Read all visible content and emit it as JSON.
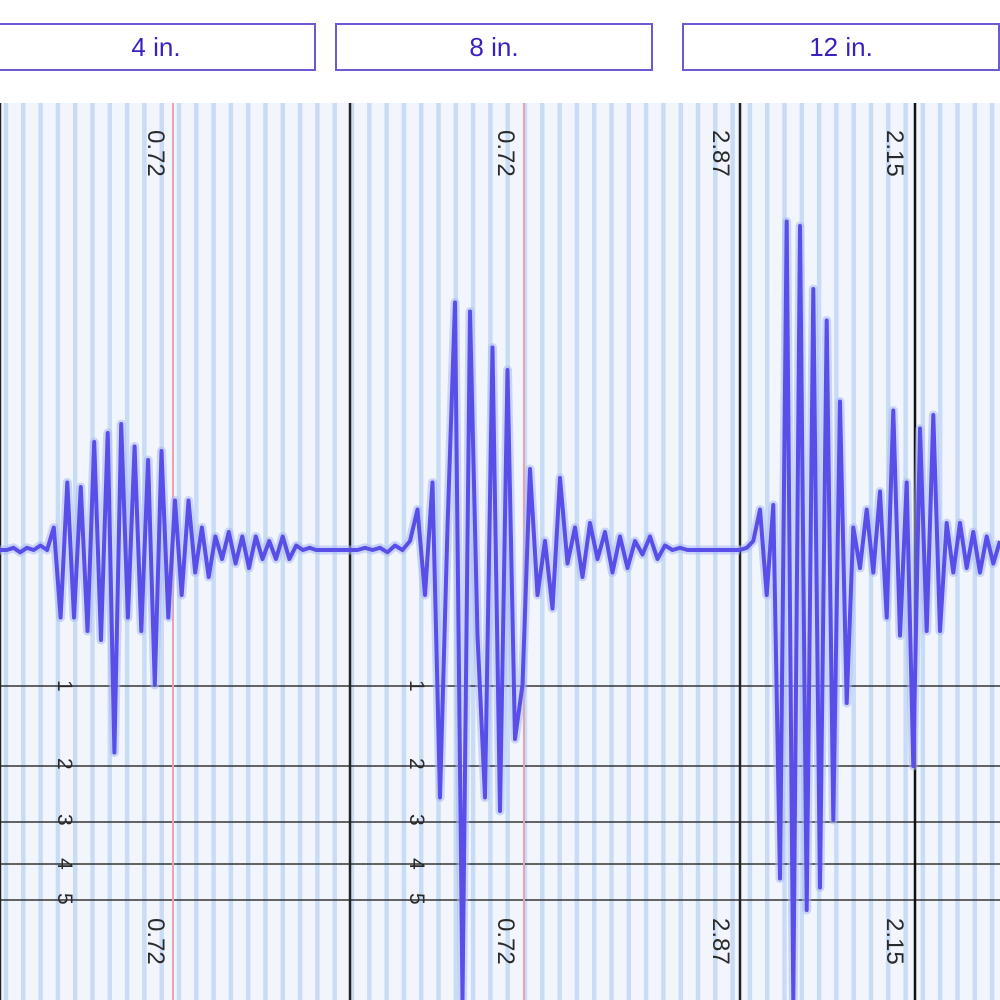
{
  "tabs": [
    {
      "label": "4 in."
    },
    {
      "label": "8 in."
    },
    {
      "label": "12 in."
    }
  ],
  "colors": {
    "trace": "#5a4ee8",
    "trace_halo": "#a9b8f4",
    "grid": "#c9dcf5",
    "grid_bg": "#f2f6fc",
    "marker": "#e8a3b0",
    "panel_border": "#222222",
    "tab_text": "#3a1fc2",
    "tab_border": "#6a5ad6"
  },
  "chart_data": {
    "type": "line",
    "title": "",
    "xlabel": "",
    "ylabel": "",
    "grid": true,
    "panels": [
      {
        "name": "4 in.",
        "reading": "0.72",
        "marker_color": "pink",
        "ticks": [
          "1",
          "2",
          "3",
          "4",
          "5"
        ],
        "ylim": [
          -6,
          6
        ],
        "y": [
          0,
          0,
          0.05,
          -0.05,
          0.05,
          0,
          0.1,
          0,
          0.5,
          -1.5,
          1.5,
          -1.5,
          1.4,
          -1.8,
          2.4,
          -2,
          2.6,
          -4.5,
          2.8,
          -1.5,
          2.3,
          -1.8,
          2,
          -3,
          2.2,
          -1.5,
          1.1,
          -1,
          1.1,
          -0.5,
          0.5,
          -0.6,
          0.3,
          -0.2,
          0.4,
          -0.3,
          0.3,
          -0.4,
          0.3,
          -0.2,
          0.2,
          -0.2,
          0.3,
          -0.2,
          0.1,
          0,
          0.05,
          0,
          0,
          0,
          0,
          0,
          0
        ]
      },
      {
        "name": "8 in.",
        "reading": "0.72",
        "marker_color": "pink",
        "ticks": [
          "1",
          "2",
          "3",
          "4",
          "5"
        ],
        "ylim": [
          -6,
          6
        ],
        "y": [
          0,
          0,
          0.05,
          0,
          0.05,
          -0.05,
          0.1,
          0,
          0.2,
          0.9,
          -1,
          1.5,
          -5.5,
          0.5,
          5.5,
          -10,
          5.3,
          -1.9,
          -5.5,
          4.5,
          -5.8,
          4,
          -4.2,
          -3,
          1.8,
          -1,
          0.2,
          -1.3,
          1.6,
          -0.3,
          0.5,
          -0.6,
          0.6,
          -0.2,
          0.4,
          -0.5,
          0.3,
          -0.4,
          0.2,
          -0.1,
          0.3,
          -0.2,
          0.1,
          0,
          0.05,
          0,
          0,
          0,
          0,
          0,
          0,
          0,
          0
        ]
      },
      {
        "name": "12 in.",
        "reading": "2.87",
        "reading_right": "2.15",
        "marker_color": "black",
        "ticks": [],
        "ylim": [
          -6,
          6
        ],
        "y": [
          0,
          0.05,
          0.2,
          0.9,
          -1,
          1,
          -7.3,
          7.3,
          -12,
          7.2,
          -8,
          5.8,
          -7.5,
          5.1,
          -6,
          3.3,
          -3.4,
          0.5,
          -0.4,
          0.9,
          -0.5,
          1.3,
          -1.5,
          3.1,
          -1.9,
          1.5,
          -4.8,
          2.7,
          -1.8,
          3,
          -1.8,
          0.6,
          -0.5,
          0.6,
          -0.4,
          0.4,
          -0.5,
          0.3,
          -0.3,
          0.2
        ]
      }
    ]
  }
}
